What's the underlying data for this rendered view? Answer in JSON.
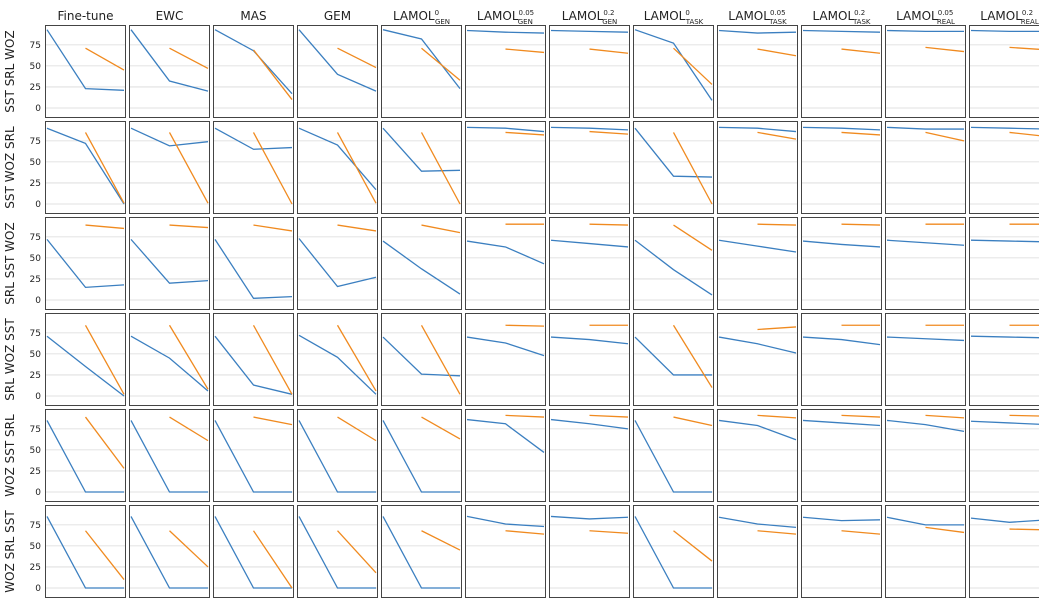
{
  "chart_data": {
    "type": "line",
    "layout": "small-multiples grid",
    "grid": true,
    "ylim": [
      0,
      95
    ],
    "yticks": [
      "0",
      "25",
      "50",
      "75"
    ],
    "line_colors": [
      "#3b7fc0",
      "#f08a1f"
    ],
    "columns": [
      {
        "label": "Fine-tune",
        "sup": "",
        "sub": ""
      },
      {
        "label": "EWC",
        "sup": "",
        "sub": ""
      },
      {
        "label": "MAS",
        "sup": "",
        "sub": ""
      },
      {
        "label": "GEM",
        "sup": "",
        "sub": ""
      },
      {
        "label": "LAMOL",
        "sup": "0",
        "sub": "GEN"
      },
      {
        "label": "LAMOL",
        "sup": "0.05",
        "sub": "GEN"
      },
      {
        "label": "LAMOL",
        "sup": "0.2",
        "sub": "GEN"
      },
      {
        "label": "LAMOL",
        "sup": "0",
        "sub": "TASK"
      },
      {
        "label": "LAMOL",
        "sup": "0.05",
        "sub": "TASK"
      },
      {
        "label": "LAMOL",
        "sup": "0.2",
        "sub": "TASK"
      },
      {
        "label": "LAMOL",
        "sup": "0.05",
        "sub": "REAL"
      },
      {
        "label": "LAMOL",
        "sup": "0.2",
        "sub": "REAL"
      }
    ],
    "rows": [
      {
        "label": "SST SRL WOZ"
      },
      {
        "label": "SST WOZ SRL"
      },
      {
        "label": "SRL SST WOZ"
      },
      {
        "label": "SRL WOZ SST"
      },
      {
        "label": "WOZ SST SRL"
      },
      {
        "label": "WOZ SRL SST"
      }
    ],
    "series": [
      [
        {
          "blue": [
            93,
            23,
            21
          ],
          "orange": [
            71,
            45
          ]
        },
        {
          "blue": [
            93,
            32,
            20
          ],
          "orange": [
            71,
            47
          ]
        },
        {
          "blue": [
            93,
            68,
            17
          ],
          "orange": [
            69,
            10
          ]
        },
        {
          "blue": [
            93,
            40,
            20
          ],
          "orange": [
            71,
            48
          ]
        },
        {
          "blue": [
            93,
            82,
            23
          ],
          "orange": [
            71,
            33
          ]
        },
        {
          "blue": [
            92,
            90,
            89
          ],
          "orange": [
            70,
            66
          ]
        },
        {
          "blue": [
            92,
            91,
            90
          ],
          "orange": [
            70,
            65
          ]
        },
        {
          "blue": [
            93,
            77,
            9
          ],
          "orange": [
            71,
            28
          ]
        },
        {
          "blue": [
            92,
            89,
            90
          ],
          "orange": [
            70,
            62
          ]
        },
        {
          "blue": [
            92,
            91,
            90
          ],
          "orange": [
            70,
            65
          ]
        },
        {
          "blue": [
            92,
            91,
            91
          ],
          "orange": [
            72,
            67
          ]
        },
        {
          "blue": [
            92,
            91,
            91
          ],
          "orange": [
            72,
            69
          ]
        }
      ],
      [
        {
          "blue": [
            90,
            72,
            0
          ],
          "orange": [
            85,
            1
          ]
        },
        {
          "blue": [
            90,
            69,
            74
          ],
          "orange": [
            85,
            1
          ]
        },
        {
          "blue": [
            90,
            65,
            67
          ],
          "orange": [
            85,
            0
          ]
        },
        {
          "blue": [
            90,
            70,
            17
          ],
          "orange": [
            85,
            1
          ]
        },
        {
          "blue": [
            90,
            39,
            40
          ],
          "orange": [
            85,
            0
          ]
        },
        {
          "blue": [
            91,
            90,
            86
          ],
          "orange": [
            85,
            82
          ]
        },
        {
          "blue": [
            91,
            90,
            88
          ],
          "orange": [
            86,
            83
          ]
        },
        {
          "blue": [
            90,
            33,
            32
          ],
          "orange": [
            85,
            0
          ]
        },
        {
          "blue": [
            91,
            90,
            86
          ],
          "orange": [
            85,
            77
          ]
        },
        {
          "blue": [
            91,
            90,
            88
          ],
          "orange": [
            85,
            82
          ]
        },
        {
          "blue": [
            91,
            89,
            89
          ],
          "orange": [
            85,
            75
          ]
        },
        {
          "blue": [
            91,
            90,
            89
          ],
          "orange": [
            85,
            80
          ]
        }
      ],
      [
        {
          "blue": [
            72,
            15,
            18
          ],
          "orange": [
            89,
            85
          ]
        },
        {
          "blue": [
            72,
            20,
            23
          ],
          "orange": [
            89,
            86
          ]
        },
        {
          "blue": [
            72,
            2,
            4
          ],
          "orange": [
            89,
            82
          ]
        },
        {
          "blue": [
            73,
            16,
            27
          ],
          "orange": [
            89,
            82
          ]
        },
        {
          "blue": [
            70,
            37,
            7
          ],
          "orange": [
            89,
            80
          ]
        },
        {
          "blue": [
            70,
            63,
            43
          ],
          "orange": [
            90,
            90
          ]
        },
        {
          "blue": [
            71,
            67,
            63
          ],
          "orange": [
            90,
            89
          ]
        },
        {
          "blue": [
            71,
            36,
            6
          ],
          "orange": [
            89,
            59
          ]
        },
        {
          "blue": [
            71,
            64,
            57
          ],
          "orange": [
            90,
            89
          ]
        },
        {
          "blue": [
            70,
            66,
            63
          ],
          "orange": [
            90,
            89
          ]
        },
        {
          "blue": [
            71,
            68,
            65
          ],
          "orange": [
            90,
            90
          ]
        },
        {
          "blue": [
            71,
            70,
            69
          ],
          "orange": [
            90,
            90
          ]
        }
      ],
      [
        {
          "blue": [
            71,
            35,
            0
          ],
          "orange": [
            84,
            2
          ]
        },
        {
          "blue": [
            71,
            45,
            6
          ],
          "orange": [
            84,
            8
          ]
        },
        {
          "blue": [
            71,
            13,
            2
          ],
          "orange": [
            84,
            2
          ]
        },
        {
          "blue": [
            72,
            46,
            2
          ],
          "orange": [
            84,
            6
          ]
        },
        {
          "blue": [
            70,
            26,
            24
          ],
          "orange": [
            84,
            2
          ]
        },
        {
          "blue": [
            70,
            63,
            48
          ],
          "orange": [
            84,
            83
          ]
        },
        {
          "blue": [
            70,
            67,
            62
          ],
          "orange": [
            84,
            84
          ]
        },
        {
          "blue": [
            70,
            25,
            25
          ],
          "orange": [
            84,
            10
          ]
        },
        {
          "blue": [
            70,
            62,
            51
          ],
          "orange": [
            79,
            82
          ]
        },
        {
          "blue": [
            70,
            67,
            61
          ],
          "orange": [
            84,
            84
          ]
        },
        {
          "blue": [
            70,
            68,
            66
          ],
          "orange": [
            84,
            84
          ]
        },
        {
          "blue": [
            71,
            70,
            69
          ],
          "orange": [
            84,
            84
          ]
        }
      ],
      [
        {
          "blue": [
            85,
            0,
            0
          ],
          "orange": [
            89,
            28
          ]
        },
        {
          "blue": [
            85,
            0,
            0
          ],
          "orange": [
            89,
            61
          ]
        },
        {
          "blue": [
            85,
            0,
            0
          ],
          "orange": [
            89,
            80
          ]
        },
        {
          "blue": [
            85,
            0,
            0
          ],
          "orange": [
            89,
            61
          ]
        },
        {
          "blue": [
            85,
            0,
            0
          ],
          "orange": [
            89,
            63
          ]
        },
        {
          "blue": [
            86,
            81,
            47
          ],
          "orange": [
            91,
            89
          ]
        },
        {
          "blue": [
            86,
            81,
            75
          ],
          "orange": [
            91,
            89
          ]
        },
        {
          "blue": [
            85,
            0,
            0
          ],
          "orange": [
            89,
            79
          ]
        },
        {
          "blue": [
            85,
            79,
            62
          ],
          "orange": [
            91,
            88
          ]
        },
        {
          "blue": [
            85,
            82,
            79
          ],
          "orange": [
            91,
            89
          ]
        },
        {
          "blue": [
            85,
            80,
            72
          ],
          "orange": [
            91,
            88
          ]
        },
        {
          "blue": [
            84,
            82,
            80
          ],
          "orange": [
            91,
            90
          ]
        }
      ],
      [
        {
          "blue": [
            85,
            0,
            0
          ],
          "orange": [
            68,
            10
          ]
        },
        {
          "blue": [
            85,
            0,
            0
          ],
          "orange": [
            68,
            25
          ]
        },
        {
          "blue": [
            85,
            0,
            0
          ],
          "orange": [
            68,
            0
          ]
        },
        {
          "blue": [
            85,
            0,
            0
          ],
          "orange": [
            68,
            18
          ]
        },
        {
          "blue": [
            85,
            0,
            0
          ],
          "orange": [
            68,
            45
          ]
        },
        {
          "blue": [
            85,
            76,
            73
          ],
          "orange": [
            68,
            64
          ]
        },
        {
          "blue": [
            85,
            82,
            84
          ],
          "orange": [
            68,
            65
          ]
        },
        {
          "blue": [
            85,
            0,
            0
          ],
          "orange": [
            68,
            32
          ]
        },
        {
          "blue": [
            84,
            76,
            72
          ],
          "orange": [
            68,
            64
          ]
        },
        {
          "blue": [
            84,
            80,
            81
          ],
          "orange": [
            68,
            64
          ]
        },
        {
          "blue": [
            84,
            75,
            75
          ],
          "orange": [
            72,
            66
          ]
        },
        {
          "blue": [
            83,
            78,
            81
          ],
          "orange": [
            70,
            69
          ]
        }
      ]
    ]
  }
}
